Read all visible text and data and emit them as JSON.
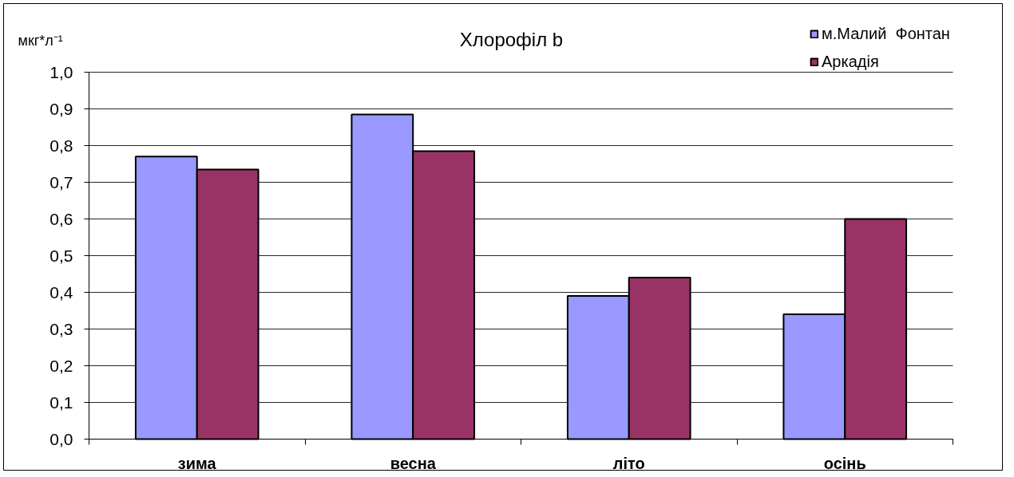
{
  "chart_data": {
    "type": "bar",
    "title": "Хлорофіл b",
    "ylabel": "мкг*л⁻¹",
    "categories": [
      "зима",
      "весна",
      "літо",
      "осінь"
    ],
    "series": [
      {
        "name": "м.Малий  Фонтан",
        "color": "#9999ff",
        "values": [
          0.77,
          0.885,
          0.39,
          0.34
        ]
      },
      {
        "name": "Аркадія",
        "color": "#993366",
        "values": [
          0.735,
          0.785,
          0.44,
          0.6
        ]
      }
    ],
    "ylim": [
      0,
      1.0
    ],
    "yticks": [
      {
        "value": 0,
        "label": "0,0"
      },
      {
        "value": 0.1,
        "label": "0,1"
      },
      {
        "value": 0.2,
        "label": "0,2"
      },
      {
        "value": 0.3,
        "label": "0,3"
      },
      {
        "value": 0.4,
        "label": "0,4"
      },
      {
        "value": 0.5,
        "label": "0,5"
      },
      {
        "value": 0.6,
        "label": "0,6"
      },
      {
        "value": 0.7,
        "label": "0,7"
      },
      {
        "value": 0.8,
        "label": "0,8"
      },
      {
        "value": 0.9,
        "label": "0,9"
      },
      {
        "value": 1.0,
        "label": "1,0"
      }
    ],
    "grid": "y",
    "legend": "top right"
  }
}
